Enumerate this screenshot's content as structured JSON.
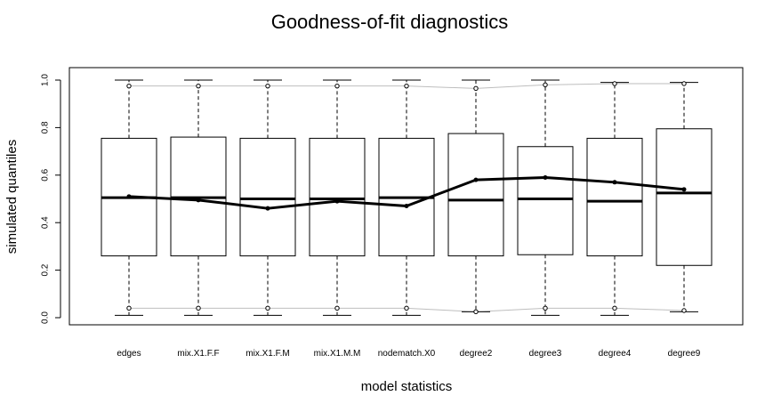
{
  "chart_data": {
    "type": "boxplot",
    "title": "Goodness-of-fit diagnostics",
    "xlabel": "model statistics",
    "ylabel": "simulated quantiles",
    "ylim": [
      0,
      1
    ],
    "yticks": [
      "0.0",
      "0.2",
      "0.4",
      "0.6",
      "0.8",
      "1.0"
    ],
    "categories": [
      "edges",
      "mix.X1.F.F",
      "mix.X1.F.M",
      "mix.X1.M.M",
      "nodematch.X0",
      "degree2",
      "degree3",
      "degree4",
      "degree9"
    ],
    "boxes": [
      {
        "whisker_low": 0.01,
        "q1": 0.26,
        "median": 0.505,
        "q3": 0.755,
        "whisker_high": 1.0
      },
      {
        "whisker_low": 0.01,
        "q1": 0.26,
        "median": 0.505,
        "q3": 0.76,
        "whisker_high": 1.0
      },
      {
        "whisker_low": 0.01,
        "q1": 0.26,
        "median": 0.5,
        "q3": 0.755,
        "whisker_high": 1.0
      },
      {
        "whisker_low": 0.01,
        "q1": 0.26,
        "median": 0.5,
        "q3": 0.755,
        "whisker_high": 1.0
      },
      {
        "whisker_low": 0.01,
        "q1": 0.26,
        "median": 0.505,
        "q3": 0.755,
        "whisker_high": 1.0
      },
      {
        "whisker_low": 0.025,
        "q1": 0.26,
        "median": 0.495,
        "q3": 0.775,
        "whisker_high": 1.0
      },
      {
        "whisker_low": 0.01,
        "q1": 0.265,
        "median": 0.5,
        "q3": 0.72,
        "whisker_high": 1.0
      },
      {
        "whisker_low": 0.01,
        "q1": 0.26,
        "median": 0.49,
        "q3": 0.755,
        "whisker_high": 0.99
      },
      {
        "whisker_low": 0.025,
        "q1": 0.22,
        "median": 0.525,
        "q3": 0.795,
        "whisker_high": 0.99
      }
    ],
    "observed": [
      0.51,
      0.495,
      0.46,
      0.49,
      0.47,
      0.58,
      0.59,
      0.57,
      0.54
    ],
    "upper_band": [
      0.975,
      0.975,
      0.975,
      0.975,
      0.975,
      0.965,
      0.98,
      0.985,
      0.985
    ],
    "lower_band": [
      0.04,
      0.04,
      0.04,
      0.04,
      0.04,
      0.025,
      0.04,
      0.04,
      0.03
    ],
    "colors": {
      "box": "#000000",
      "observed": "#000000",
      "band": "#bebebe"
    }
  }
}
